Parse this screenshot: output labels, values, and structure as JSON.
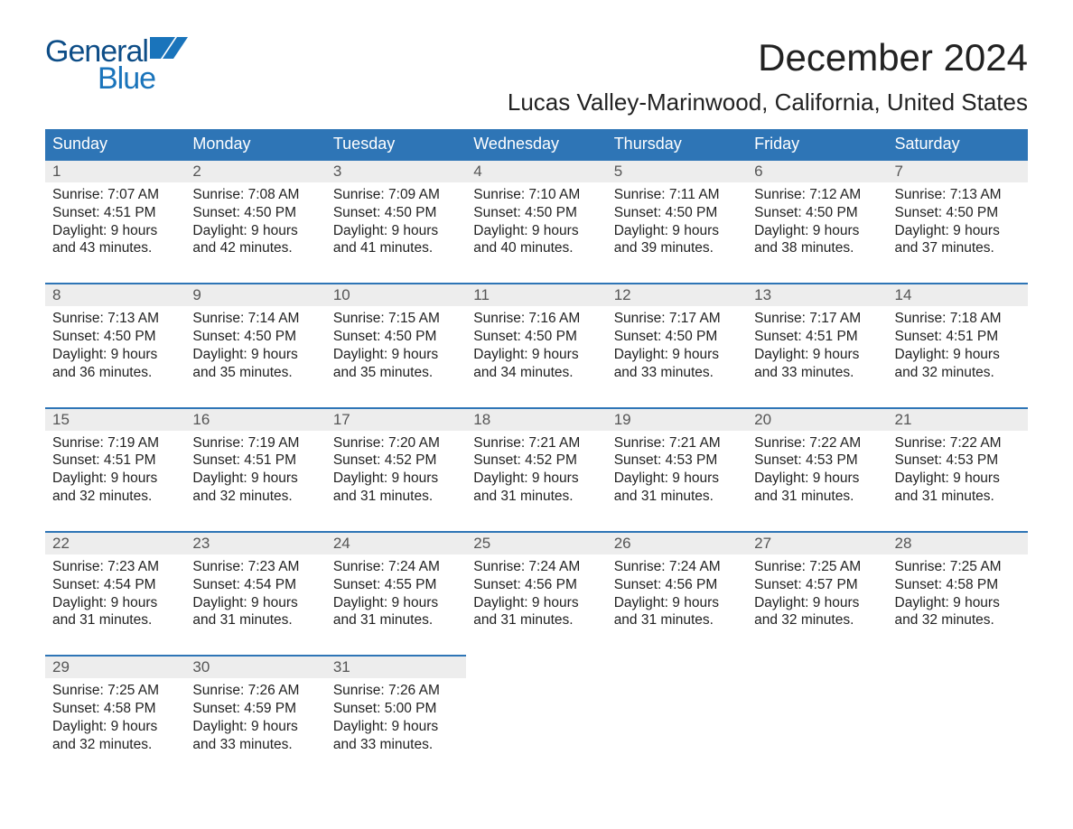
{
  "logo": {
    "word1": "General",
    "word2": "Blue",
    "color1": "#0d4d87",
    "color2": "#1a74bb",
    "flag_color": "#1a74bb"
  },
  "title": "December 2024",
  "location": "Lucas Valley-Marinwood, California, United States",
  "colors": {
    "header_bg": "#2e75b6",
    "header_text": "#ffffff",
    "daynum_bg": "#ededed",
    "daynum_text": "#555555",
    "week_border": "#2e75b6",
    "body_text": "#222222",
    "page_bg": "#ffffff"
  },
  "typography": {
    "title_fontsize": 42,
    "location_fontsize": 26,
    "header_fontsize": 18,
    "daynum_fontsize": 17,
    "cell_fontsize": 15.5,
    "logo_fontsize": 34
  },
  "layout": {
    "columns": 7,
    "rows": 5,
    "start_offset": 0
  },
  "day_headers": [
    "Sunday",
    "Monday",
    "Tuesday",
    "Wednesday",
    "Thursday",
    "Friday",
    "Saturday"
  ],
  "weeks": [
    [
      {
        "n": "1",
        "sunrise": "Sunrise: 7:07 AM",
        "sunset": "Sunset: 4:51 PM",
        "d1": "Daylight: 9 hours",
        "d2": "and 43 minutes."
      },
      {
        "n": "2",
        "sunrise": "Sunrise: 7:08 AM",
        "sunset": "Sunset: 4:50 PM",
        "d1": "Daylight: 9 hours",
        "d2": "and 42 minutes."
      },
      {
        "n": "3",
        "sunrise": "Sunrise: 7:09 AM",
        "sunset": "Sunset: 4:50 PM",
        "d1": "Daylight: 9 hours",
        "d2": "and 41 minutes."
      },
      {
        "n": "4",
        "sunrise": "Sunrise: 7:10 AM",
        "sunset": "Sunset: 4:50 PM",
        "d1": "Daylight: 9 hours",
        "d2": "and 40 minutes."
      },
      {
        "n": "5",
        "sunrise": "Sunrise: 7:11 AM",
        "sunset": "Sunset: 4:50 PM",
        "d1": "Daylight: 9 hours",
        "d2": "and 39 minutes."
      },
      {
        "n": "6",
        "sunrise": "Sunrise: 7:12 AM",
        "sunset": "Sunset: 4:50 PM",
        "d1": "Daylight: 9 hours",
        "d2": "and 38 minutes."
      },
      {
        "n": "7",
        "sunrise": "Sunrise: 7:13 AM",
        "sunset": "Sunset: 4:50 PM",
        "d1": "Daylight: 9 hours",
        "d2": "and 37 minutes."
      }
    ],
    [
      {
        "n": "8",
        "sunrise": "Sunrise: 7:13 AM",
        "sunset": "Sunset: 4:50 PM",
        "d1": "Daylight: 9 hours",
        "d2": "and 36 minutes."
      },
      {
        "n": "9",
        "sunrise": "Sunrise: 7:14 AM",
        "sunset": "Sunset: 4:50 PM",
        "d1": "Daylight: 9 hours",
        "d2": "and 35 minutes."
      },
      {
        "n": "10",
        "sunrise": "Sunrise: 7:15 AM",
        "sunset": "Sunset: 4:50 PM",
        "d1": "Daylight: 9 hours",
        "d2": "and 35 minutes."
      },
      {
        "n": "11",
        "sunrise": "Sunrise: 7:16 AM",
        "sunset": "Sunset: 4:50 PM",
        "d1": "Daylight: 9 hours",
        "d2": "and 34 minutes."
      },
      {
        "n": "12",
        "sunrise": "Sunrise: 7:17 AM",
        "sunset": "Sunset: 4:50 PM",
        "d1": "Daylight: 9 hours",
        "d2": "and 33 minutes."
      },
      {
        "n": "13",
        "sunrise": "Sunrise: 7:17 AM",
        "sunset": "Sunset: 4:51 PM",
        "d1": "Daylight: 9 hours",
        "d2": "and 33 minutes."
      },
      {
        "n": "14",
        "sunrise": "Sunrise: 7:18 AM",
        "sunset": "Sunset: 4:51 PM",
        "d1": "Daylight: 9 hours",
        "d2": "and 32 minutes."
      }
    ],
    [
      {
        "n": "15",
        "sunrise": "Sunrise: 7:19 AM",
        "sunset": "Sunset: 4:51 PM",
        "d1": "Daylight: 9 hours",
        "d2": "and 32 minutes."
      },
      {
        "n": "16",
        "sunrise": "Sunrise: 7:19 AM",
        "sunset": "Sunset: 4:51 PM",
        "d1": "Daylight: 9 hours",
        "d2": "and 32 minutes."
      },
      {
        "n": "17",
        "sunrise": "Sunrise: 7:20 AM",
        "sunset": "Sunset: 4:52 PM",
        "d1": "Daylight: 9 hours",
        "d2": "and 31 minutes."
      },
      {
        "n": "18",
        "sunrise": "Sunrise: 7:21 AM",
        "sunset": "Sunset: 4:52 PM",
        "d1": "Daylight: 9 hours",
        "d2": "and 31 minutes."
      },
      {
        "n": "19",
        "sunrise": "Sunrise: 7:21 AM",
        "sunset": "Sunset: 4:53 PM",
        "d1": "Daylight: 9 hours",
        "d2": "and 31 minutes."
      },
      {
        "n": "20",
        "sunrise": "Sunrise: 7:22 AM",
        "sunset": "Sunset: 4:53 PM",
        "d1": "Daylight: 9 hours",
        "d2": "and 31 minutes."
      },
      {
        "n": "21",
        "sunrise": "Sunrise: 7:22 AM",
        "sunset": "Sunset: 4:53 PM",
        "d1": "Daylight: 9 hours",
        "d2": "and 31 minutes."
      }
    ],
    [
      {
        "n": "22",
        "sunrise": "Sunrise: 7:23 AM",
        "sunset": "Sunset: 4:54 PM",
        "d1": "Daylight: 9 hours",
        "d2": "and 31 minutes."
      },
      {
        "n": "23",
        "sunrise": "Sunrise: 7:23 AM",
        "sunset": "Sunset: 4:54 PM",
        "d1": "Daylight: 9 hours",
        "d2": "and 31 minutes."
      },
      {
        "n": "24",
        "sunrise": "Sunrise: 7:24 AM",
        "sunset": "Sunset: 4:55 PM",
        "d1": "Daylight: 9 hours",
        "d2": "and 31 minutes."
      },
      {
        "n": "25",
        "sunrise": "Sunrise: 7:24 AM",
        "sunset": "Sunset: 4:56 PM",
        "d1": "Daylight: 9 hours",
        "d2": "and 31 minutes."
      },
      {
        "n": "26",
        "sunrise": "Sunrise: 7:24 AM",
        "sunset": "Sunset: 4:56 PM",
        "d1": "Daylight: 9 hours",
        "d2": "and 31 minutes."
      },
      {
        "n": "27",
        "sunrise": "Sunrise: 7:25 AM",
        "sunset": "Sunset: 4:57 PM",
        "d1": "Daylight: 9 hours",
        "d2": "and 32 minutes."
      },
      {
        "n": "28",
        "sunrise": "Sunrise: 7:25 AM",
        "sunset": "Sunset: 4:58 PM",
        "d1": "Daylight: 9 hours",
        "d2": "and 32 minutes."
      }
    ],
    [
      {
        "n": "29",
        "sunrise": "Sunrise: 7:25 AM",
        "sunset": "Sunset: 4:58 PM",
        "d1": "Daylight: 9 hours",
        "d2": "and 32 minutes."
      },
      {
        "n": "30",
        "sunrise": "Sunrise: 7:26 AM",
        "sunset": "Sunset: 4:59 PM",
        "d1": "Daylight: 9 hours",
        "d2": "and 33 minutes."
      },
      {
        "n": "31",
        "sunrise": "Sunrise: 7:26 AM",
        "sunset": "Sunset: 5:00 PM",
        "d1": "Daylight: 9 hours",
        "d2": "and 33 minutes."
      },
      null,
      null,
      null,
      null
    ]
  ]
}
